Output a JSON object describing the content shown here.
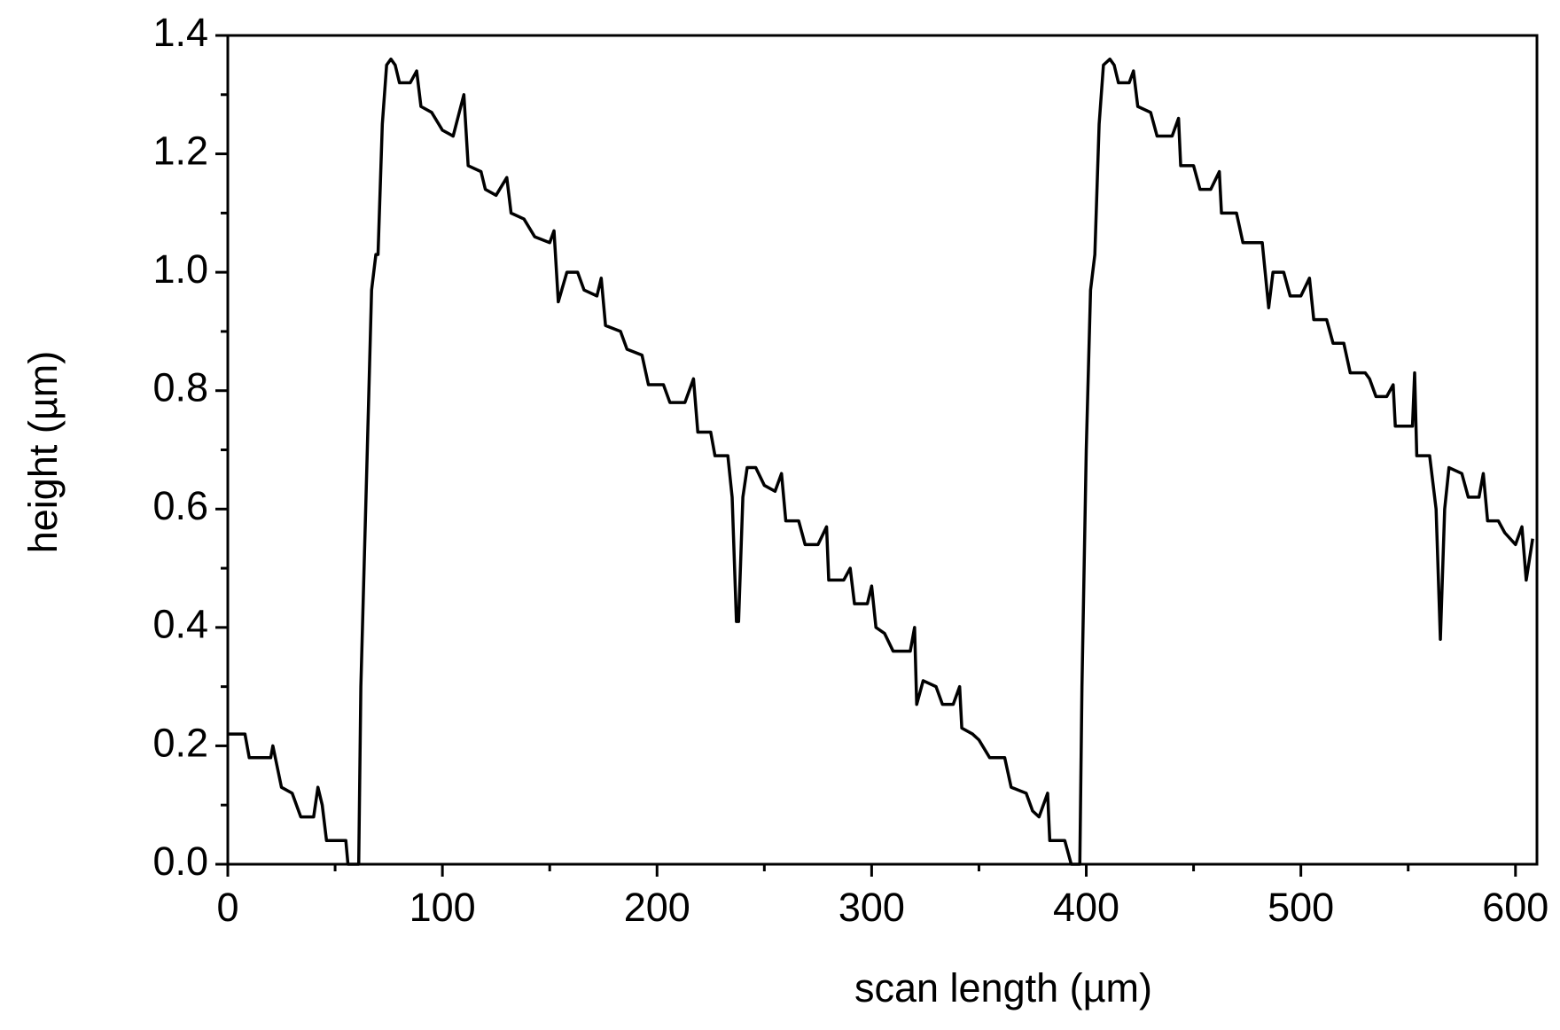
{
  "chart_data": {
    "type": "line",
    "xlabel": "scan length (µm)",
    "ylabel": "height (µm)",
    "x": [
      0,
      8,
      10,
      20,
      21,
      25,
      30,
      34,
      40,
      42,
      44,
      46,
      55,
      56,
      61,
      62,
      65,
      67,
      69,
      70,
      72,
      74,
      76,
      78,
      80,
      85,
      88,
      90,
      95,
      100,
      105,
      110,
      112,
      118,
      120,
      125,
      130,
      132,
      138,
      143,
      150,
      152,
      154,
      158,
      163,
      166,
      172,
      174,
      176,
      183,
      186,
      193,
      196,
      203,
      206,
      213,
      217,
      219,
      225,
      227,
      233,
      235,
      237,
      238,
      240,
      242,
      246,
      250,
      255,
      258,
      260,
      266,
      269,
      275,
      279,
      280,
      287,
      290,
      292,
      298,
      300,
      302,
      306,
      310,
      318,
      320,
      321,
      324,
      330,
      333,
      338,
      341,
      342,
      347,
      350,
      355,
      362,
      365,
      372,
      375,
      378,
      382,
      383,
      390,
      393,
      397,
      398,
      400,
      402,
      404,
      406,
      408,
      411,
      413,
      415,
      420,
      422,
      424,
      430,
      433,
      440,
      443,
      444,
      450,
      453,
      458,
      462,
      463,
      470,
      473,
      482,
      485,
      487,
      492,
      495,
      500,
      504,
      506,
      512,
      515,
      520,
      523,
      530,
      532,
      535,
      540,
      543,
      544,
      548,
      552,
      553,
      554,
      560,
      563,
      565,
      567,
      569,
      575,
      578,
      583,
      585,
      587,
      592,
      595,
      600,
      603,
      605,
      608
    ],
    "series": [
      {
        "color": "#000000",
        "values": [
          0.22,
          0.22,
          0.18,
          0.18,
          0.2,
          0.13,
          0.12,
          0.08,
          0.08,
          0.13,
          0.1,
          0.04,
          0.04,
          0,
          0,
          0.3,
          0.7,
          0.97,
          1.03,
          1.03,
          1.25,
          1.35,
          1.36,
          1.35,
          1.32,
          1.32,
          1.34,
          1.28,
          1.27,
          1.24,
          1.23,
          1.3,
          1.18,
          1.17,
          1.14,
          1.13,
          1.16,
          1.1,
          1.09,
          1.06,
          1.05,
          1.07,
          0.95,
          1.0,
          1.0,
          0.97,
          0.96,
          0.99,
          0.91,
          0.9,
          0.87,
          0.86,
          0.81,
          0.81,
          0.78,
          0.78,
          0.82,
          0.73,
          0.73,
          0.69,
          0.69,
          0.62,
          0.41,
          0.41,
          0.62,
          0.67,
          0.67,
          0.64,
          0.63,
          0.66,
          0.58,
          0.58,
          0.54,
          0.54,
          0.57,
          0.48,
          0.48,
          0.5,
          0.44,
          0.44,
          0.47,
          0.4,
          0.39,
          0.36,
          0.36,
          0.4,
          0.27,
          0.31,
          0.3,
          0.27,
          0.27,
          0.3,
          0.23,
          0.22,
          0.21,
          0.18,
          0.18,
          0.13,
          0.12,
          0.09,
          0.08,
          0.12,
          0.04,
          0.04,
          0,
          0,
          0.3,
          0.7,
          0.97,
          1.03,
          1.25,
          1.35,
          1.36,
          1.35,
          1.32,
          1.32,
          1.34,
          1.28,
          1.27,
          1.23,
          1.23,
          1.26,
          1.18,
          1.18,
          1.14,
          1.14,
          1.17,
          1.1,
          1.1,
          1.05,
          1.05,
          0.94,
          1.0,
          1.0,
          0.96,
          0.96,
          0.99,
          0.92,
          0.92,
          0.88,
          0.88,
          0.83,
          0.83,
          0.82,
          0.79,
          0.79,
          0.81,
          0.74,
          0.74,
          0.74,
          0.83,
          0.69,
          0.69,
          0.6,
          0.38,
          0.6,
          0.67,
          0.66,
          0.62,
          0.62,
          0.66,
          0.58,
          0.58,
          0.56,
          0.54,
          0.57,
          0.48,
          0.55
        ]
      }
    ],
    "xlim": [
      0,
      610
    ],
    "ylim": [
      0,
      1.4
    ],
    "xticks": [
      0,
      100,
      200,
      300,
      400,
      500,
      600
    ],
    "xminorticks": [
      50,
      150,
      250,
      350,
      450,
      550
    ],
    "yticks": [
      {
        "value": 0,
        "label": "0.0"
      },
      0.2,
      0.4,
      0.6,
      0.8,
      {
        "value": 1,
        "label": "1.0"
      },
      1.2,
      1.4
    ],
    "yminorticks": [
      0.1,
      0.3,
      0.5,
      0.7,
      0.9,
      1.1,
      1.3
    ]
  }
}
